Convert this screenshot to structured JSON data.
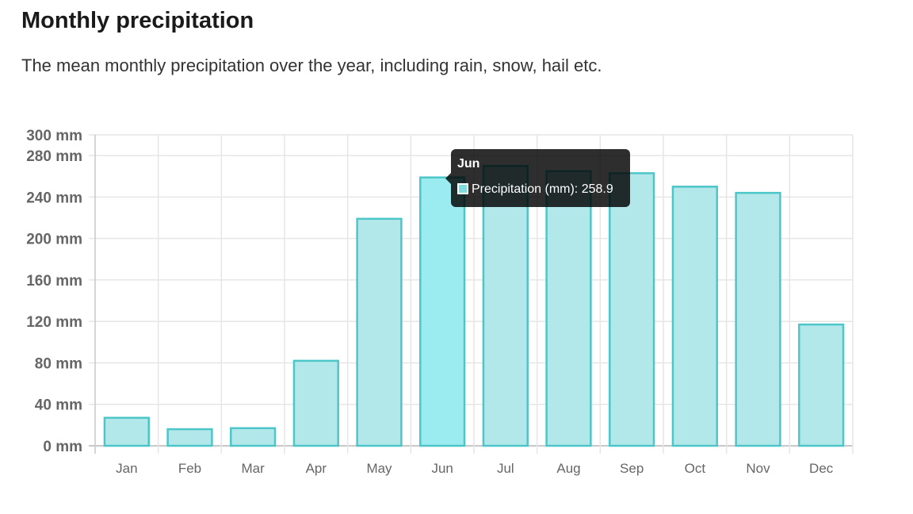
{
  "page": {
    "title": "Monthly precipitation",
    "subtitle": "The mean monthly precipitation over the year, including rain, snow, hail etc."
  },
  "chart_data": {
    "type": "bar",
    "categories": [
      "Jan",
      "Feb",
      "Mar",
      "Apr",
      "May",
      "Jun",
      "Jul",
      "Aug",
      "Sep",
      "Oct",
      "Nov",
      "Dec"
    ],
    "series": [
      {
        "name": "Precipitation (mm)",
        "values": [
          27,
          16,
          17,
          82,
          219,
          258.9,
          270,
          265,
          263,
          250,
          244,
          117
        ]
      }
    ],
    "ylim": [
      0,
      300
    ],
    "y_ticks": [
      "0 mm",
      "40 mm",
      "80 mm",
      "120 mm",
      "160 mm",
      "200 mm",
      "240 mm",
      "280 mm",
      "300 mm"
    ],
    "y_tick_values": [
      0,
      40,
      80,
      120,
      160,
      200,
      240,
      280,
      300
    ],
    "grid": true,
    "colors": {
      "fill": "#b3e8ea",
      "stroke": "#4dc6c9",
      "highlight_fill": "#9aecf0"
    },
    "highlighted_category": "Jun"
  },
  "tooltip": {
    "title": "Jun",
    "label": "Precipitation (mm): 258.9",
    "swatch_color": "#7fdde0"
  }
}
